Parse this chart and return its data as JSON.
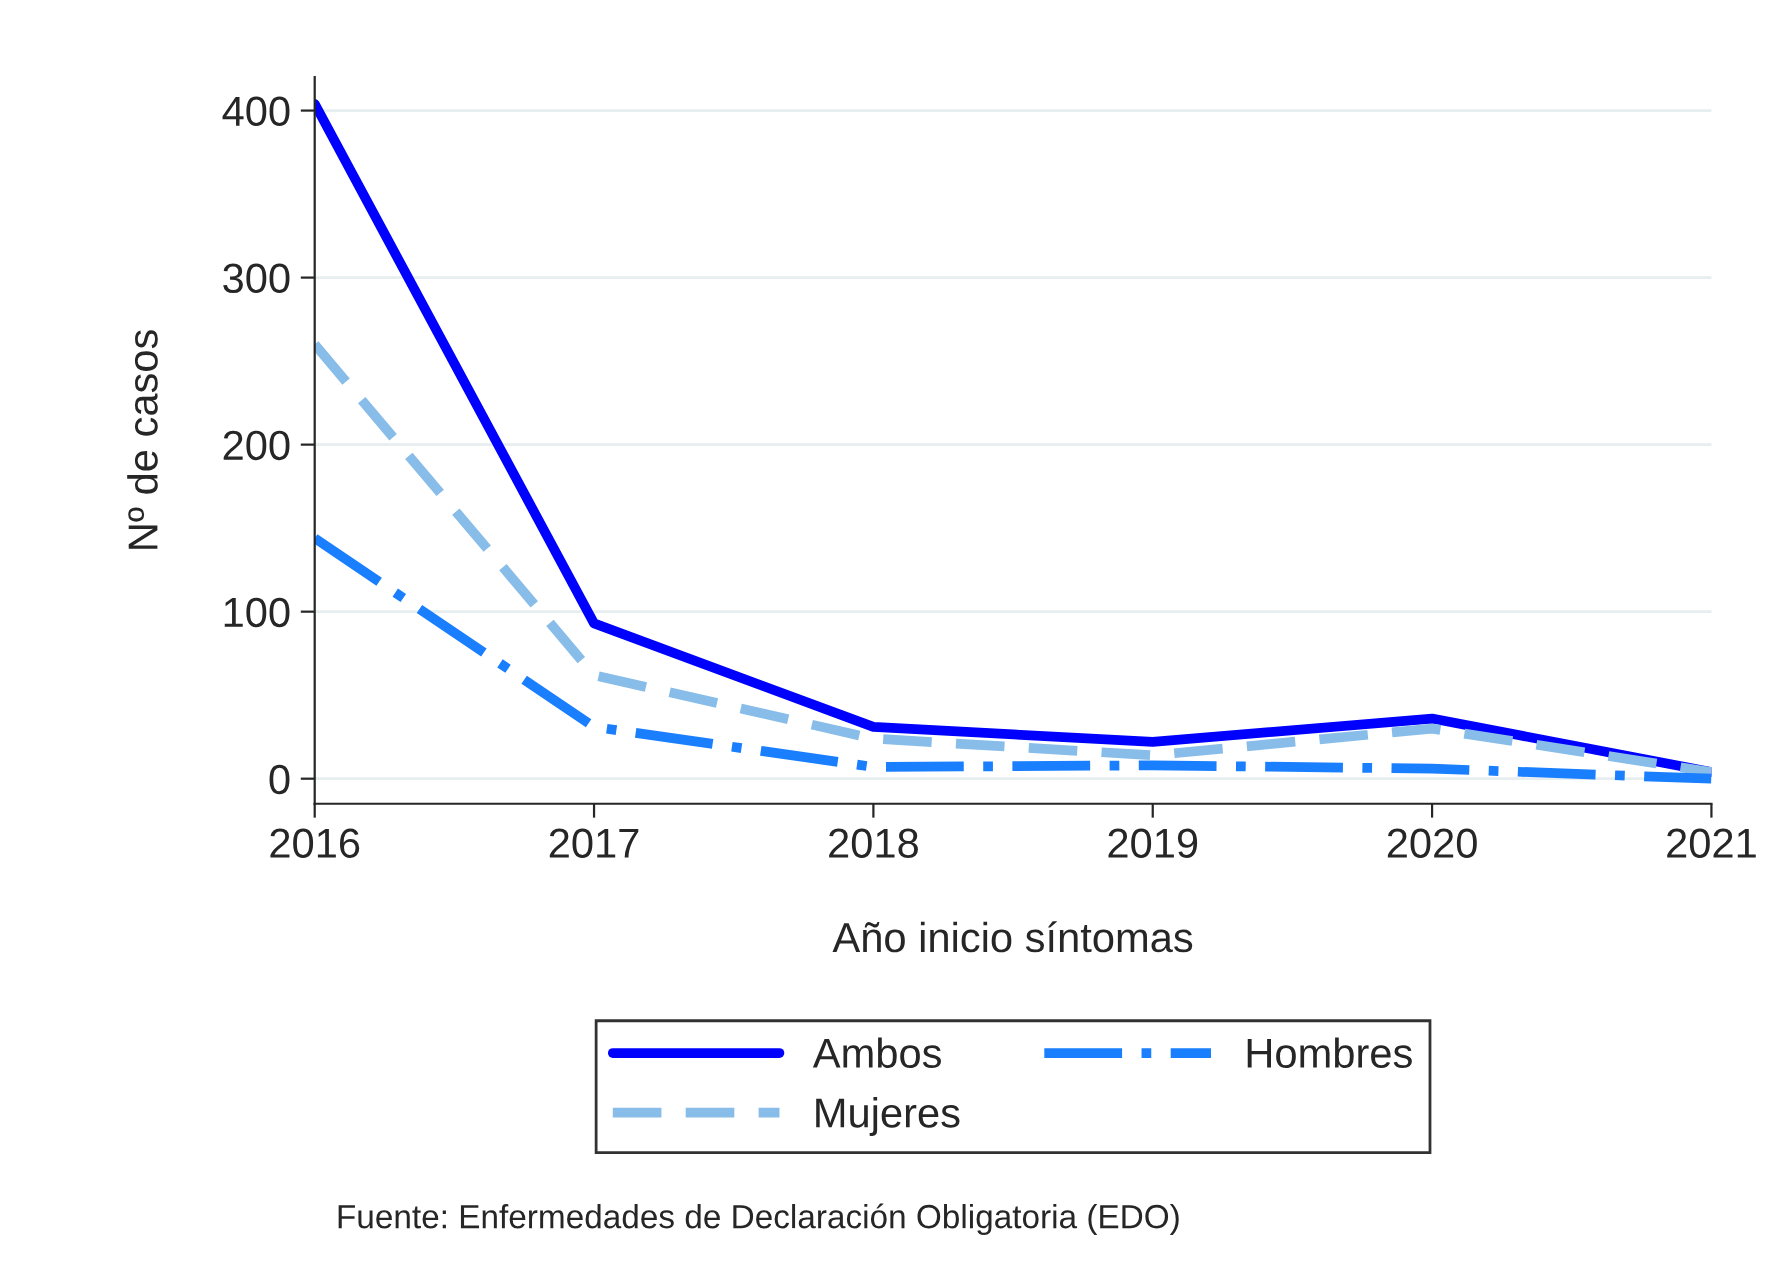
{
  "chart_data": {
    "type": "line",
    "xlabel": "Año inicio síntomas",
    "ylabel": "Nº de casos",
    "x": [
      2016,
      2017,
      2018,
      2019,
      2020,
      2021
    ],
    "series": [
      {
        "name": "Ambos",
        "color": "#0000ff",
        "line_style": "solid",
        "values": [
          404,
          93,
          31,
          22,
          36,
          4
        ]
      },
      {
        "name": "Mujeres",
        "color": "#87bde8",
        "line_style": "dashed",
        "values": [
          260,
          62,
          24,
          14,
          30,
          4
        ]
      },
      {
        "name": "Hombres",
        "color": "#1a7fff",
        "line_style": "dashdot",
        "values": [
          144,
          31,
          7,
          8,
          6,
          0
        ]
      }
    ],
    "xlim": [
      2016,
      2021
    ],
    "xticks": [
      2016,
      2017,
      2018,
      2019,
      2020,
      2021
    ],
    "ylim": [
      -15,
      420
    ],
    "yticks": [
      0,
      100,
      200,
      300,
      400
    ],
    "grid": "y",
    "legend": "bottom",
    "marker": "none",
    "annotations": [
      "Fuente: Enfermedades de Declaración Obligatoria (EDO)"
    ]
  }
}
